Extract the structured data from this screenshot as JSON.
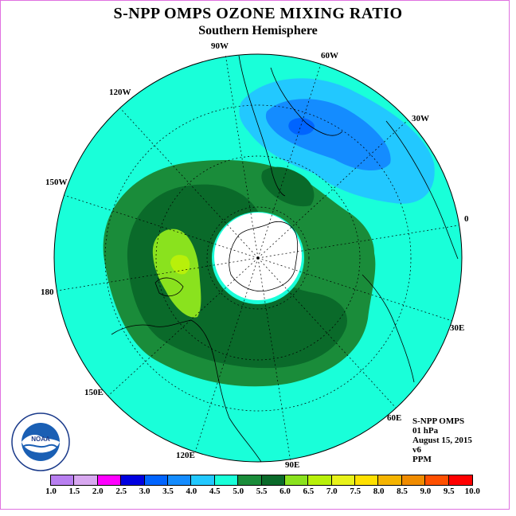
{
  "header": {
    "title": "S-NPP OMPS OZONE MIXING RATIO",
    "subtitle": "Southern Hemisphere"
  },
  "map": {
    "longitude_labels": [
      "90W",
      "60W",
      "30W",
      "0",
      "30E",
      "60E",
      "90E",
      "120E",
      "150E",
      "180",
      "150W",
      "120W"
    ],
    "colors": {
      "ocean_ring": "#19ffd9",
      "band_5_0": "#1a8c3a",
      "band_5_5": "#0a6a2a",
      "band_6_0": "#8ae21e",
      "band_6_5": "#b8f00a",
      "low_4_0": "#22c8ff",
      "low_3_5": "#148cff",
      "low_3_0": "#0064ff",
      "polar_night": "#ffffff"
    }
  },
  "info": {
    "line1": "S-NPP OMPS",
    "line2": "01 hPa",
    "line3": "August 15, 2015",
    "line4": "v6",
    "line5": "PPM"
  },
  "colorbar": {
    "labels": [
      "1.0",
      "1.5",
      "2.0",
      "2.5",
      "3.0",
      "3.5",
      "4.0",
      "4.5",
      "5.0",
      "5.5",
      "6.0",
      "6.5",
      "7.0",
      "7.5",
      "8.0",
      "8.5",
      "9.0",
      "9.5",
      "10.0"
    ],
    "colors": [
      "#b87ff0",
      "#d8a8f0",
      "#ff00ff",
      "#0000e0",
      "#0064ff",
      "#148cff",
      "#22c8ff",
      "#19ffd9",
      "#1a8c3a",
      "#0a6a2a",
      "#8ae21e",
      "#b8f00a",
      "#e8f21a",
      "#ffe000",
      "#f5b400",
      "#f08c00",
      "#ff5000",
      "#ff0000",
      "#8b4513"
    ]
  },
  "logo": {
    "text": "NOAA",
    "ring_text": "NATIONAL OCEANIC AND ATMOSPHERIC ADMINISTRATION",
    "bottom_text": "U.S. DEPARTMENT OF COMMERCE"
  }
}
